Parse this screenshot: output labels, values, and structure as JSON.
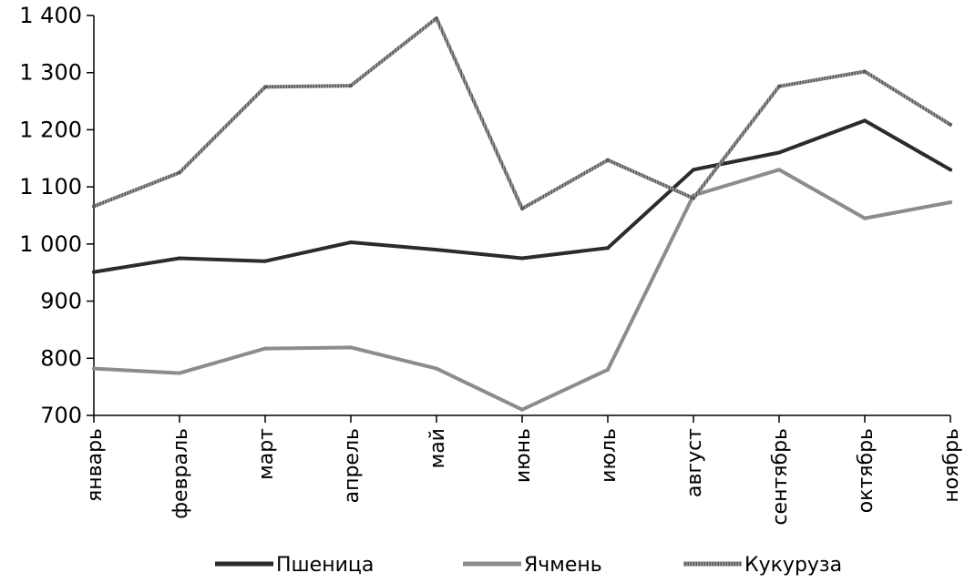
{
  "chart_data": {
    "type": "line",
    "title": "",
    "xlabel": "",
    "ylabel": "",
    "categories": [
      "январь",
      "февраль",
      "март",
      "апрель",
      "май",
      "июнь",
      "июль",
      "август",
      "сентябрь",
      "октябрь",
      "ноябрь"
    ],
    "ylim": [
      700,
      1400
    ],
    "yticks": [
      700,
      800,
      900,
      1000,
      1100,
      1200,
      1300,
      1400
    ],
    "ytick_labels": [
      "700",
      "800",
      "900",
      "1 000",
      "1 100",
      "1 200",
      "1 300",
      "1 400"
    ],
    "grid": false,
    "legend_position": "bottom",
    "series": [
      {
        "name": "Пшеница",
        "color": "#2b2b2b",
        "style": "solid",
        "values": [
          951,
          975,
          970,
          1003,
          990,
          975,
          993,
          1130,
          1160,
          1216,
          1130
        ]
      },
      {
        "name": "Ячмень",
        "color": "#8c8c8c",
        "style": "solid",
        "values": [
          782,
          774,
          817,
          819,
          782,
          710,
          780,
          1085,
          1130,
          1045,
          1073
        ]
      },
      {
        "name": "Кукуруза",
        "color": "#6e6e6e",
        "style": "hatched",
        "values": [
          1066,
          1125,
          1275,
          1277,
          1395,
          1062,
          1147,
          1080,
          1276,
          1302,
          1209
        ]
      }
    ]
  }
}
